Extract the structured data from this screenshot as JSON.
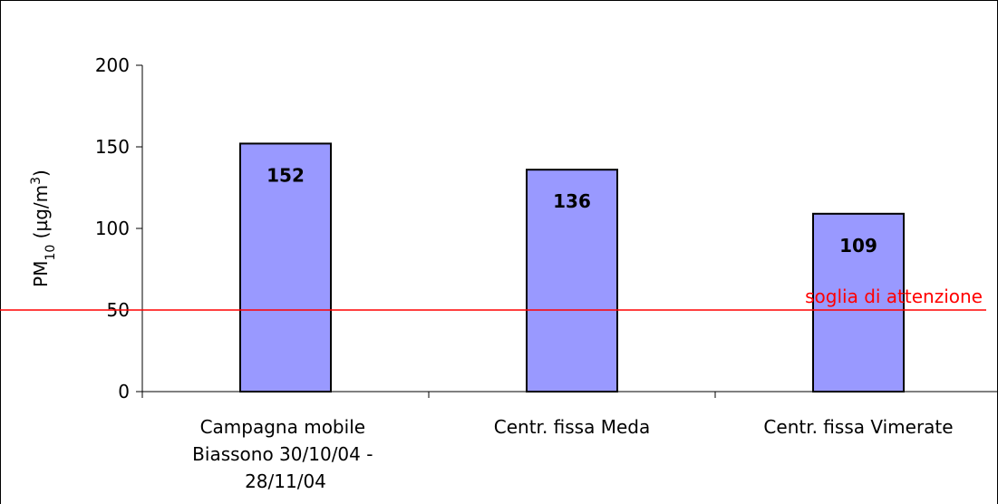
{
  "chart_data": {
    "type": "bar",
    "y_label": [
      "PM",
      "10",
      " (µg/m",
      "3",
      ")"
    ],
    "categories": [
      "Campagna mobile Biassono 30/10/04 - 28/11/04",
      "Centr. fissa Meda",
      "Centr. fissa Vimerate"
    ],
    "values": [
      152,
      136,
      109
    ],
    "color": "#9999ff",
    "ylim": [
      0,
      200
    ],
    "yticks": [
      0,
      50,
      100,
      150,
      200
    ],
    "threshold": {
      "value": 50,
      "label": "soglia di attenzione",
      "color": "#ff0000"
    }
  }
}
